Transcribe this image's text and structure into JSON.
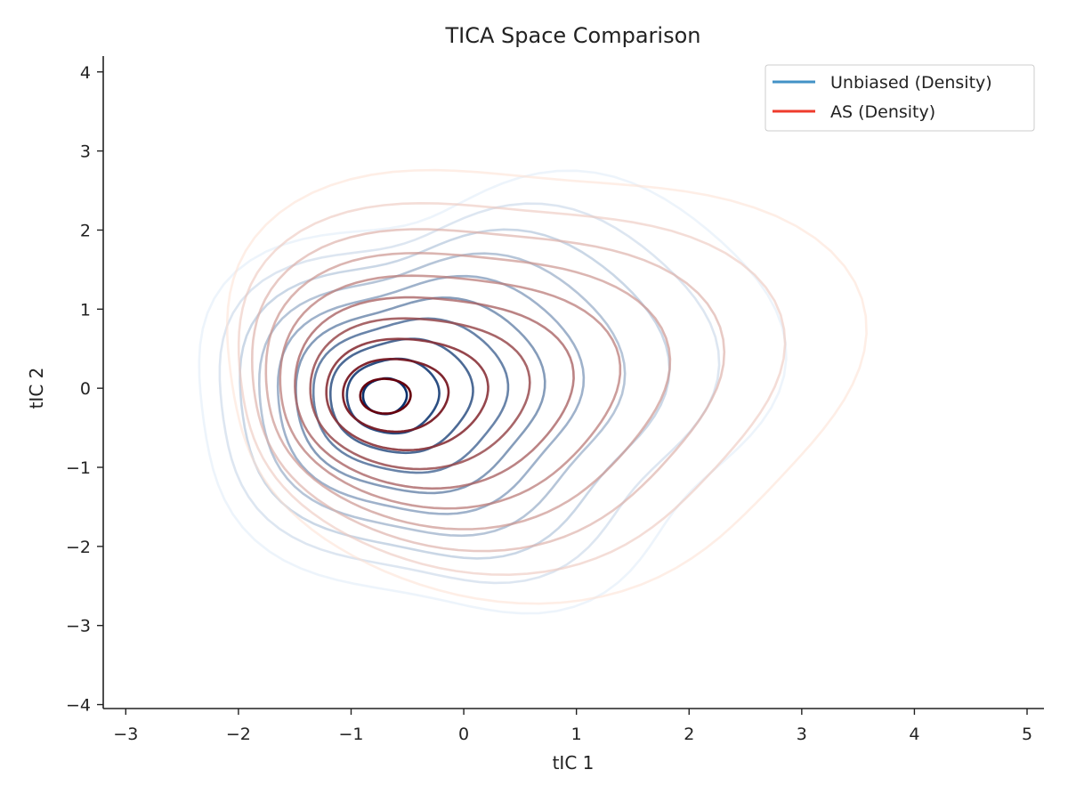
{
  "chart_data": {
    "type": "contour",
    "title": "TICA Space Comparison",
    "xlabel": "tIC 1",
    "ylabel": "tIC 2",
    "xlim": [
      -3.2,
      5.15
    ],
    "ylim": [
      -4.05,
      4.2
    ],
    "xticks": [
      -3,
      -2,
      -1,
      0,
      1,
      2,
      3,
      4,
      5
    ],
    "yticks": [
      -4,
      -3,
      -2,
      -1,
      0,
      1,
      2,
      3,
      4
    ],
    "grid": false,
    "legend_position": "top-right",
    "levels": 10,
    "series": [
      {
        "name": "Unbiased (Density)",
        "legend_color": "#4292c6",
        "light_color": "#deebf7",
        "dark_color": "#08306b",
        "peak": [
          -0.7,
          -0.1
        ],
        "outer_extent": {
          "x": [
            -2.2,
            2.6
          ],
          "y": [
            -2.9,
            2.8
          ]
        }
      },
      {
        "name": "AS (Density)",
        "legend_color": "#ef3b2c",
        "light_color": "#fee0d2",
        "dark_color": "#67000d",
        "peak": [
          -0.7,
          -0.1
        ],
        "outer_extent": {
          "x": [
            -2.5,
            3.1
          ],
          "y": [
            -2.7,
            2.8
          ]
        }
      }
    ]
  }
}
